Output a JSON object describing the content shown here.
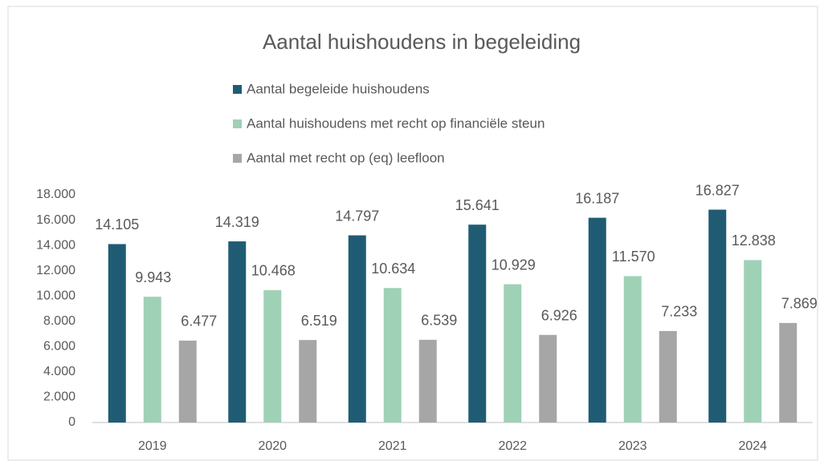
{
  "chart_data": {
    "type": "bar",
    "title": "Aantal huishoudens in begeleiding",
    "categories": [
      "2019",
      "2020",
      "2021",
      "2022",
      "2023",
      "2024"
    ],
    "series": [
      {
        "name": "Aantal begeleide huishoudens",
        "color": "#1f5c74",
        "values": [
          14105,
          14319,
          14797,
          15641,
          16187,
          16827
        ],
        "value_labels": [
          "14.105",
          "14.319",
          "14.797",
          "15.641",
          "16.187",
          "16.827"
        ]
      },
      {
        "name": "Aantal huishoudens met recht op financiële steun",
        "color": "#9fd1b6",
        "values": [
          9943,
          10468,
          10634,
          10929,
          11570,
          12838
        ],
        "value_labels": [
          "9.943",
          "10.468",
          "10.634",
          "10.929",
          "11.570",
          "12.838"
        ]
      },
      {
        "name": "Aantal met recht op (eq) leefloon",
        "color": "#a6a6a6",
        "values": [
          6477,
          6519,
          6539,
          6926,
          7233,
          7869
        ],
        "value_labels": [
          "6.477",
          "6.519",
          "6.539",
          "6.926",
          "7.233",
          "7.869"
        ]
      }
    ],
    "ylim": [
      0,
      18000
    ],
    "yticks": [
      0,
      {
        "value": 2000,
        "label": "2.000"
      },
      {
        "value": 4000,
        "label": "4.000"
      },
      {
        "value": 6000,
        "label": "6.000"
      },
      {
        "value": 8000,
        "label": "8.000"
      },
      {
        "value": 10000,
        "label": "10.000"
      },
      {
        "value": 12000,
        "label": "12.000"
      },
      {
        "value": 14000,
        "label": "14.000"
      },
      {
        "value": 16000,
        "label": "16.000"
      },
      {
        "value": 18000,
        "label": "18.000"
      }
    ],
    "legend": "top",
    "grid": false
  }
}
